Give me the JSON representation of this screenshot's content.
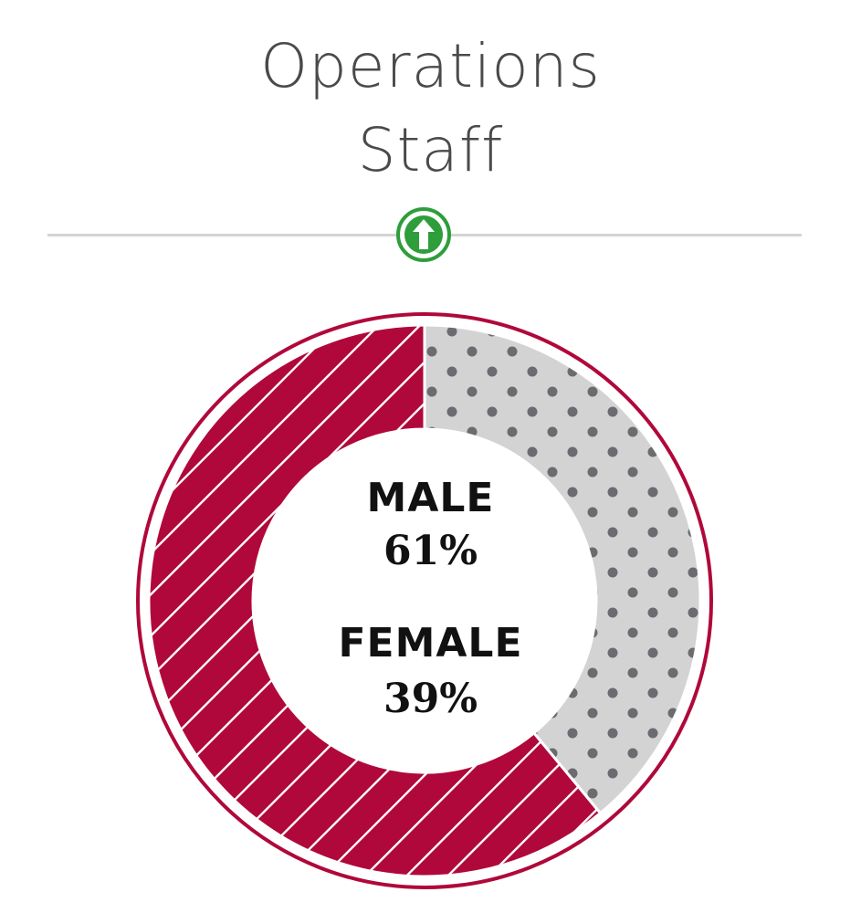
{
  "title": {
    "line1": "Operations",
    "line2": "Staff"
  },
  "trend_icon": "arrow-up-circle-icon",
  "colors": {
    "male": "#b0083a",
    "female": "#d3d3d3",
    "female_dots": "#6b6b70",
    "outline": "#b0083a",
    "trend": "#2e9e3a",
    "title": "#4a4a4a",
    "divider": "#d4d4d4"
  },
  "chart_data": {
    "type": "pie",
    "categories": [
      "MALE",
      "FEMALE"
    ],
    "values": [
      61,
      39
    ],
    "labels": [
      "61%",
      "39%"
    ],
    "title": "Operations Staff"
  },
  "center": {
    "male_label": "MALE",
    "male_value": "61%",
    "female_label": "FEMALE",
    "female_value": "39%"
  }
}
